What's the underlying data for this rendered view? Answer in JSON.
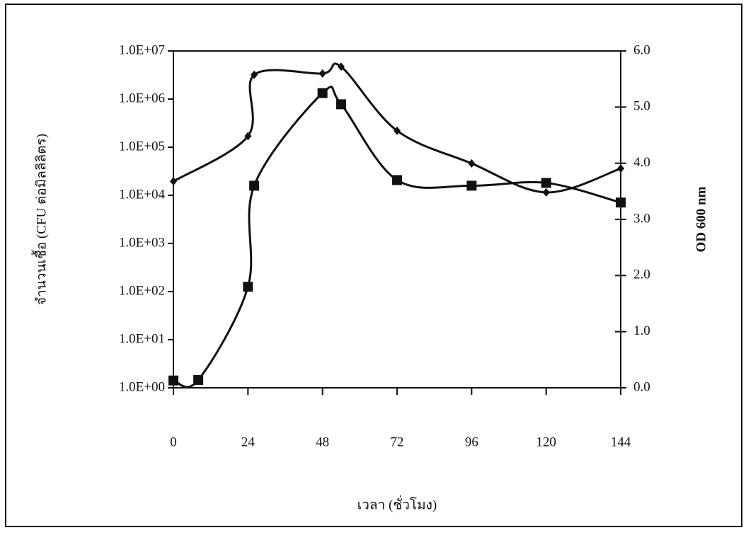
{
  "chart_data": {
    "type": "line",
    "x_label": "เวลา (ชั่วโมง)",
    "y_label": "จำนวนเชื้อ (CFU ต่อมิลลิลิตร)",
    "y2_label": "OD 600 nm",
    "log_y": true,
    "xlim": [
      0,
      144
    ],
    "xticks": [
      0,
      24,
      48,
      72,
      96,
      120,
      144
    ],
    "ylim": [
      1,
      10000000
    ],
    "yticks": [
      {
        "value": 1,
        "label": "1.0E+00"
      },
      {
        "value": 10,
        "label": "1.0E+01"
      },
      {
        "value": 100,
        "label": "1.0E+02"
      },
      {
        "value": 1000,
        "label": "1.0E+03"
      },
      {
        "value": 10000,
        "label": "1.0E+04"
      },
      {
        "value": 100000,
        "label": "1.0E+05"
      },
      {
        "value": 1000000,
        "label": "1.0E+06"
      },
      {
        "value": 10000000,
        "label": "1.0E+07"
      }
    ],
    "y2lim": [
      0,
      6
    ],
    "y2ticks": [
      {
        "value": 0,
        "label": "0.0"
      },
      {
        "value": 1,
        "label": "1.0"
      },
      {
        "value": 2,
        "label": "2.0"
      },
      {
        "value": 3,
        "label": "3.0"
      },
      {
        "value": 4,
        "label": "4.0"
      },
      {
        "value": 5,
        "label": "5.0"
      },
      {
        "value": 6,
        "label": "6.0"
      }
    ],
    "x": [
      0,
      8,
      24,
      26,
      48,
      54,
      72,
      96,
      120,
      144
    ],
    "series": [
      {
        "color": "#111111",
        "marker": "diamond",
        "values": [
          19500,
          null,
          170000,
          3200000,
          3400000,
          4700000,
          220000,
          46000,
          11500,
          36000
        ]
      },
      {
        "color": "#111111",
        "marker": "square",
        "axis": "y2",
        "values": [
          0.13,
          0.14,
          1.8,
          3.6,
          5.25,
          5.05,
          3.7,
          3.6,
          3.65,
          3.3
        ]
      }
    ]
  }
}
